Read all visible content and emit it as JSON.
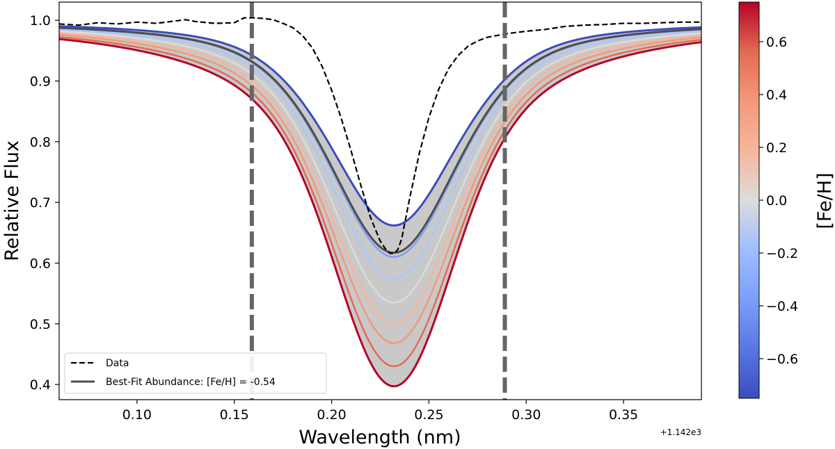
{
  "chart_data": {
    "type": "line",
    "title": "",
    "xlabel": "Wavelength (nm)",
    "ylabel": "Relative Flux",
    "x_offset_label": "+1.142e3",
    "xlim": [
      0.06,
      0.39
    ],
    "ylim": [
      0.375,
      1.03
    ],
    "x_ticks": [
      0.1,
      0.15,
      0.2,
      0.25,
      0.3,
      0.35
    ],
    "x_tick_labels": [
      "0.10",
      "0.15",
      "0.20",
      "0.25",
      "0.30",
      "0.35"
    ],
    "y_ticks": [
      0.4,
      0.5,
      0.6,
      0.7,
      0.8,
      0.9,
      1.0
    ],
    "y_tick_labels": [
      "0.4",
      "0.5",
      "0.6",
      "0.7",
      "0.8",
      "0.9",
      "1.0"
    ],
    "line_center": 0.232,
    "fit_window": [
      0.159,
      0.289
    ],
    "colorbar": {
      "label": "[Fe/H]",
      "range": [
        -0.75,
        0.75
      ],
      "ticks": [
        -0.6,
        -0.4,
        -0.2,
        0.0,
        0.2,
        0.4,
        0.6
      ],
      "tick_labels": [
        "−0.6",
        "−0.4",
        "−0.2",
        "0.0",
        "0.2",
        "0.4",
        "0.6"
      ],
      "colormap": "coolwarm"
    },
    "model_series": [
      {
        "feh": -0.75,
        "min_flux": 0.662,
        "color": "#3b4cc0"
      },
      {
        "feh": -0.45,
        "min_flux": 0.61,
        "color": "#7b9ff9"
      },
      {
        "feh": -0.25,
        "min_flux": 0.575,
        "color": "#aac7fd"
      },
      {
        "feh": 0.0,
        "min_flux": 0.535,
        "color": "#dddcdc"
      },
      {
        "feh": 0.15,
        "min_flux": 0.5,
        "color": "#f6b69b"
      },
      {
        "feh": 0.3,
        "min_flux": 0.468,
        "color": "#f4987a"
      },
      {
        "feh": 0.45,
        "min_flux": 0.43,
        "color": "#e36b52"
      },
      {
        "feh": 0.75,
        "min_flux": 0.397,
        "color": "#b40426"
      }
    ],
    "best_fit": {
      "feh": -0.54,
      "min_flux": 0.617,
      "color": "#4d4d4d"
    },
    "data_series": {
      "x": [
        0.06,
        0.07,
        0.08,
        0.09,
        0.1,
        0.11,
        0.12,
        0.125,
        0.13,
        0.14,
        0.15,
        0.155,
        0.16,
        0.165,
        0.17,
        0.175,
        0.18,
        0.185,
        0.19,
        0.195,
        0.2,
        0.205,
        0.21,
        0.215,
        0.22,
        0.225,
        0.228,
        0.23,
        0.232,
        0.234,
        0.236,
        0.24,
        0.245,
        0.25,
        0.255,
        0.26,
        0.265,
        0.27,
        0.275,
        0.28,
        0.285,
        0.29,
        0.3,
        0.31,
        0.32,
        0.33,
        0.34,
        0.35,
        0.36,
        0.37,
        0.38,
        0.39
      ],
      "y": [
        0.994,
        0.992,
        0.996,
        0.994,
        0.997,
        0.995,
        0.999,
        1.001,
        0.998,
        0.995,
        0.996,
        1.004,
        1.004,
        1.003,
        1.001,
        0.995,
        0.988,
        0.975,
        0.955,
        0.925,
        0.885,
        0.838,
        0.785,
        0.728,
        0.675,
        0.636,
        0.622,
        0.616,
        0.616,
        0.622,
        0.64,
        0.705,
        0.78,
        0.84,
        0.886,
        0.92,
        0.942,
        0.957,
        0.966,
        0.972,
        0.975,
        0.978,
        0.982,
        0.985,
        0.99,
        0.992,
        0.993,
        0.995,
        0.995,
        0.996,
        0.997,
        0.997
      ]
    },
    "legend": {
      "position": "lower-left",
      "entries": [
        {
          "label": "Data",
          "style": "dashed",
          "color": "#000000"
        },
        {
          "label": "Best-Fit Abundance: [Fe/H] = -0.54",
          "style": "solid",
          "color": "#4d4d4d"
        }
      ]
    },
    "grid": false
  }
}
